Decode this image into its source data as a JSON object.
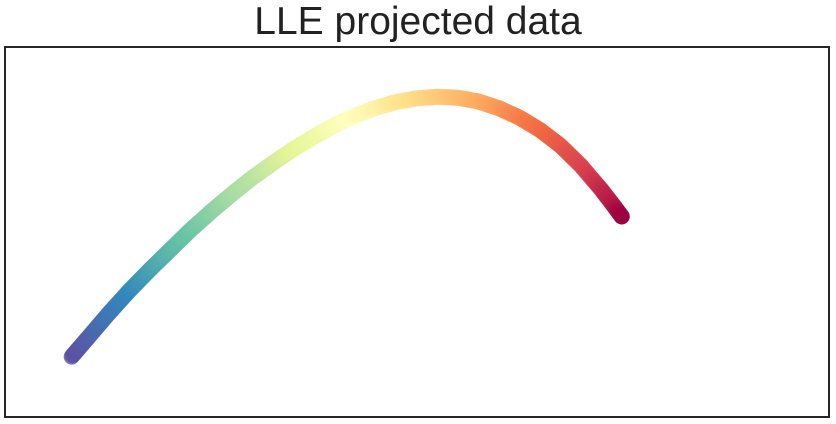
{
  "chart_data": {
    "type": "scatter",
    "title": "LLE projected data",
    "xlabel": "",
    "ylabel": "",
    "grid": false,
    "legend": "none",
    "axis_ticks": "none",
    "colormap": "Spectral_r",
    "colormap_stops": [
      "#5e4fa2",
      "#3288bd",
      "#66c2a5",
      "#abdda4",
      "#e6f598",
      "#ffffbf",
      "#fee08b",
      "#fdae61",
      "#f46d43",
      "#d53e4f",
      "#9e0142"
    ],
    "xlim": [
      -1.0,
      1.0
    ],
    "ylim": [
      -0.45,
      0.65
    ],
    "series": [
      {
        "points": [
          {
            "x": -0.84,
            "y": -0.275,
            "c": 0.0
          },
          {
            "x": -0.8,
            "y": -0.218,
            "c": 0.03
          },
          {
            "x": -0.75,
            "y": -0.146,
            "c": 0.07
          },
          {
            "x": -0.7,
            "y": -0.078,
            "c": 0.1
          },
          {
            "x": -0.65,
            "y": -0.015,
            "c": 0.14
          },
          {
            "x": -0.6,
            "y": 0.045,
            "c": 0.18
          },
          {
            "x": -0.55,
            "y": 0.105,
            "c": 0.21
          },
          {
            "x": -0.5,
            "y": 0.16,
            "c": 0.25
          },
          {
            "x": -0.45,
            "y": 0.212,
            "c": 0.29
          },
          {
            "x": -0.4,
            "y": 0.261,
            "c": 0.32
          },
          {
            "x": -0.35,
            "y": 0.305,
            "c": 0.36
          },
          {
            "x": -0.3,
            "y": 0.347,
            "c": 0.4
          },
          {
            "x": -0.25,
            "y": 0.384,
            "c": 0.43
          },
          {
            "x": -0.2,
            "y": 0.418,
            "c": 0.47
          },
          {
            "x": -0.15,
            "y": 0.447,
            "c": 0.51
          },
          {
            "x": -0.1,
            "y": 0.47,
            "c": 0.54
          },
          {
            "x": -0.05,
            "y": 0.488,
            "c": 0.58
          },
          {
            "x": 0.0,
            "y": 0.499,
            "c": 0.61
          },
          {
            "x": 0.05,
            "y": 0.504,
            "c": 0.64
          },
          {
            "x": 0.1,
            "y": 0.501,
            "c": 0.67
          },
          {
            "x": 0.15,
            "y": 0.49,
            "c": 0.7
          },
          {
            "x": 0.2,
            "y": 0.47,
            "c": 0.73
          },
          {
            "x": 0.25,
            "y": 0.442,
            "c": 0.77
          },
          {
            "x": 0.3,
            "y": 0.405,
            "c": 0.8
          },
          {
            "x": 0.35,
            "y": 0.358,
            "c": 0.84
          },
          {
            "x": 0.4,
            "y": 0.298,
            "c": 0.88
          },
          {
            "x": 0.45,
            "y": 0.226,
            "c": 0.93
          },
          {
            "x": 0.48,
            "y": 0.178,
            "c": 0.96
          },
          {
            "x": 0.5,
            "y": 0.145,
            "c": 1.0
          }
        ]
      }
    ]
  }
}
